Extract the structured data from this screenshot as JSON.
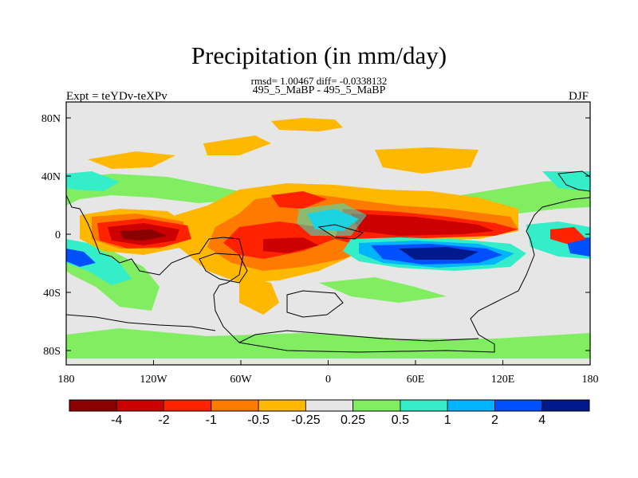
{
  "title": "Precipitation (in mm/day)",
  "stats_line": "rmsd= 1.00467 diff= -0.0338132",
  "case_line": "495_5_MaBP - 495_5_MaBP",
  "experiment_label": "Expt = teYDv-teXPv",
  "season_label": "DJF",
  "map": {
    "projection": "cylindrical equidistant",
    "lon_range": [
      -180,
      180
    ],
    "lat_range": [
      -90,
      90
    ],
    "x_tick_labels": [
      "180",
      "120W",
      "60W",
      "0",
      "60E",
      "120E",
      "180"
    ],
    "y_tick_labels": [
      "80N",
      "40N",
      "0",
      "40S",
      "80S"
    ],
    "background_color": "#e6e6e6"
  },
  "colorbar": {
    "colors": [
      "#8b0000",
      "#cc0000",
      "#ff2200",
      "#ff7a00",
      "#ffb800",
      "#e6e6e6",
      "#80ee60",
      "#33eec8",
      "#00b4ff",
      "#0050ff",
      "#001a8c"
    ],
    "labels": [
      "-4",
      "-2",
      "-1",
      "-0.5",
      "-0.25",
      "0.25",
      "0.5",
      "1",
      "2",
      "4"
    ]
  }
}
